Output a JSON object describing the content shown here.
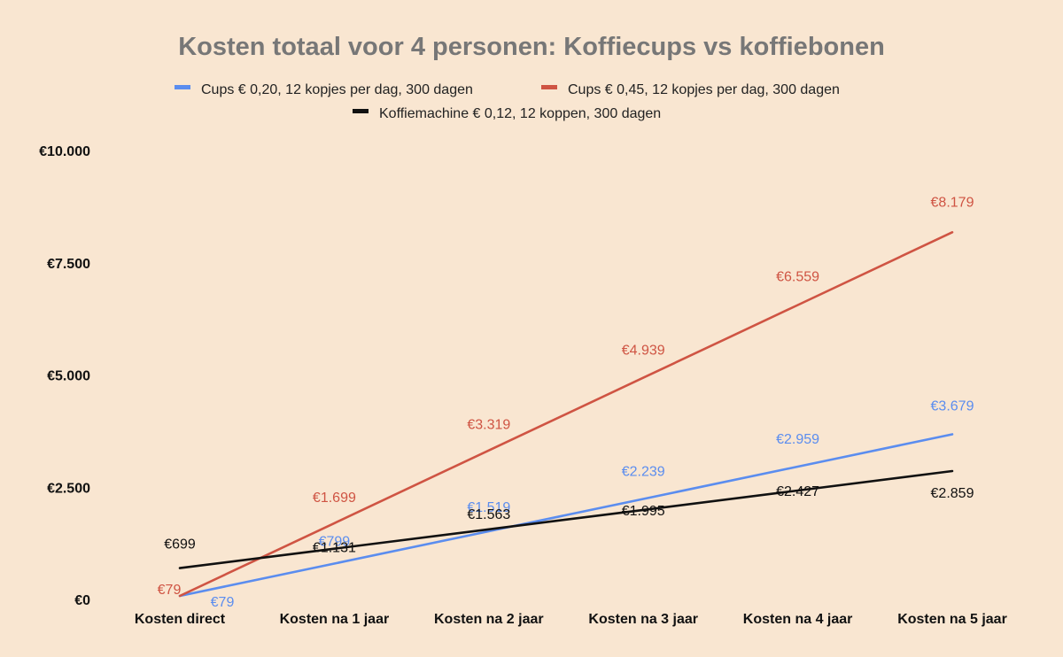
{
  "chart_data": {
    "type": "line",
    "title": "Kosten totaal voor 4 personen: Koffiecups vs koffiebonen",
    "xlabel": "",
    "ylabel": "",
    "categories": [
      "Kosten direct",
      "Kosten na 1 jaar",
      "Kosten na 2 jaar",
      "Kosten na 3 jaar",
      "Kosten na 4 jaar",
      "Kosten na 5 jaar"
    ],
    "ylim": [
      0,
      10000
    ],
    "yticks": [
      0,
      2500,
      5000,
      7500,
      10000
    ],
    "ytick_labels": [
      "€0",
      "€2.500",
      "€5.000",
      "€7.500",
      "€10.000"
    ],
    "grid": false,
    "legend_position": "top",
    "series": [
      {
        "name": "Cups € 0,20, 12 kopjes per dag, 300 dagen",
        "color": "#5b8def",
        "values": [
          79,
          799,
          1519,
          2239,
          2959,
          3679
        ],
        "labels": [
          "€79",
          "€799",
          "€1.519",
          "€2.239",
          "€2.959",
          "€3.679"
        ]
      },
      {
        "name": "Cups € 0,45, 12 kopjes per dag, 300 dagen",
        "color": "#cf5443",
        "values": [
          79,
          1699,
          3319,
          4939,
          6559,
          8179
        ],
        "labels": [
          "€79",
          "€1.699",
          "€3.319",
          "€4.939",
          "€6.559",
          "€8.179"
        ]
      },
      {
        "name": "Koffiemachine € 0,12, 12 koppen, 300 dagen",
        "color": "#111111",
        "values": [
          699,
          1131,
          1563,
          1995,
          2427,
          2859
        ],
        "labels": [
          "€699",
          "€1.131",
          "€1.563",
          "€1.995",
          "€2.427",
          "€2.859"
        ]
      }
    ]
  }
}
